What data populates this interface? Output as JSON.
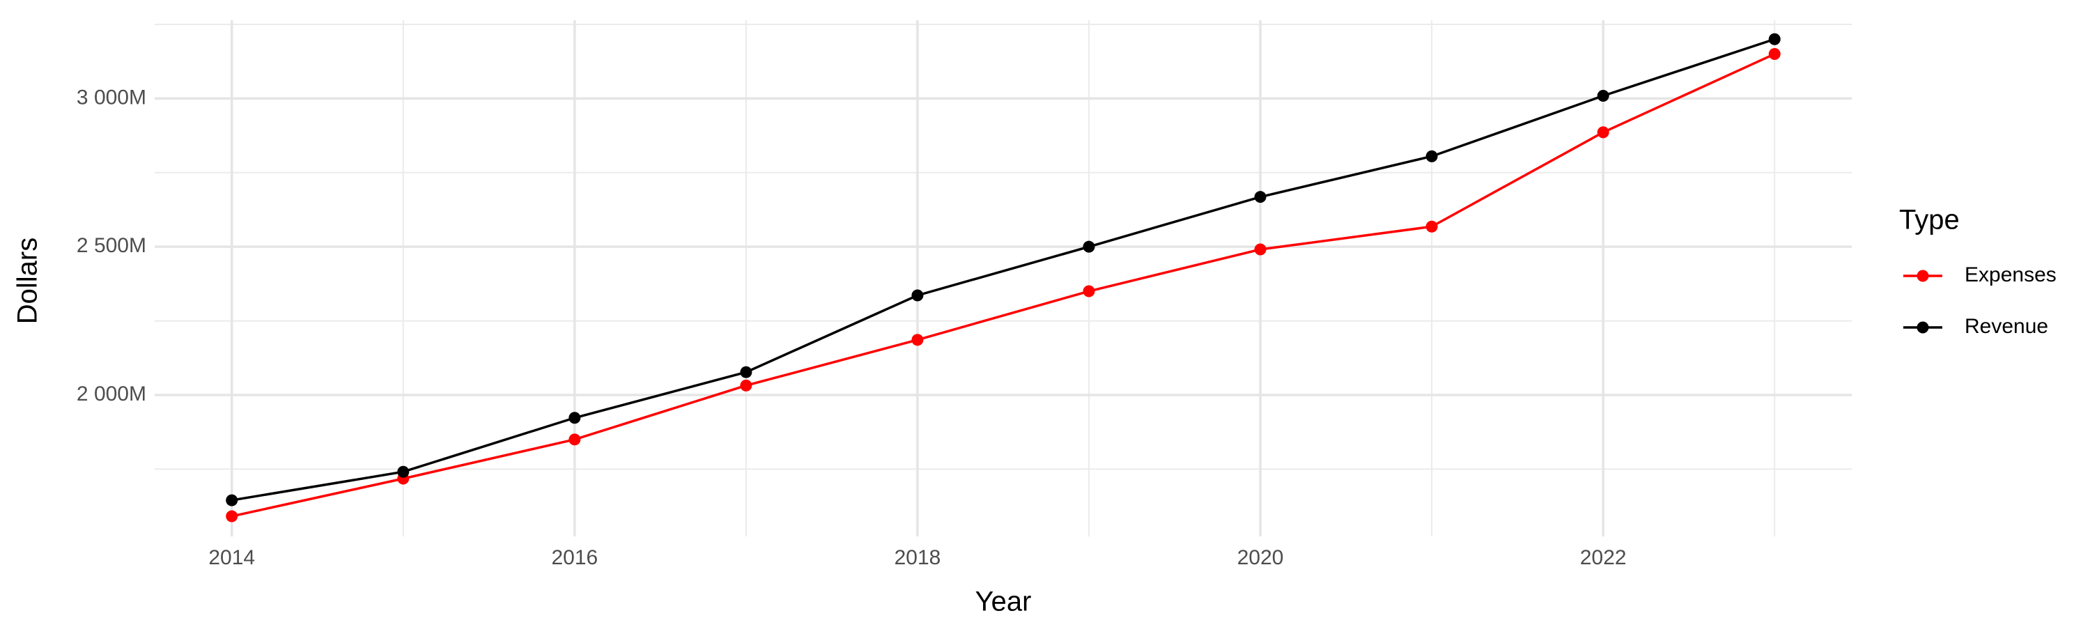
{
  "chart_data": {
    "type": "line",
    "x_label": "Year",
    "y_label": "Dollars",
    "legend_title": "Type",
    "x": [
      2014,
      2015,
      2016,
      2017,
      2018,
      2019,
      2020,
      2021,
      2022,
      2023
    ],
    "series": [
      {
        "name": "Expenses",
        "color": "#ff0000",
        "values": [
          1591000000,
          1718000000,
          1850000000,
          2032000000,
          2186000000,
          2350000000,
          2491000000,
          2568000000,
          2886000000,
          3150000000
        ]
      },
      {
        "name": "Revenue",
        "color": "#000000",
        "values": [
          1645000000,
          1741000000,
          1923000000,
          2077000000,
          2336000000,
          2500000000,
          2668000000,
          2805000000,
          3009000000,
          3200000000
        ]
      }
    ],
    "xlim": [
      2013.55,
      2023.45
    ],
    "ylim": [
      1523000000,
      3264000000
    ],
    "xticks": [
      2014,
      2016,
      2018,
      2020,
      2022
    ],
    "yticks": [
      {
        "value": 2000000000,
        "label": "2 000M"
      },
      {
        "value": 2500000000,
        "label": "2 500M"
      },
      {
        "value": 3000000000,
        "label": "3 000M"
      }
    ],
    "x_minor_ticks": [
      2015,
      2017,
      2019,
      2021,
      2023
    ],
    "y_minor_ticks": [
      1750000000,
      2250000000,
      2750000000,
      3250000000
    ],
    "grid": true,
    "legend": "right"
  }
}
